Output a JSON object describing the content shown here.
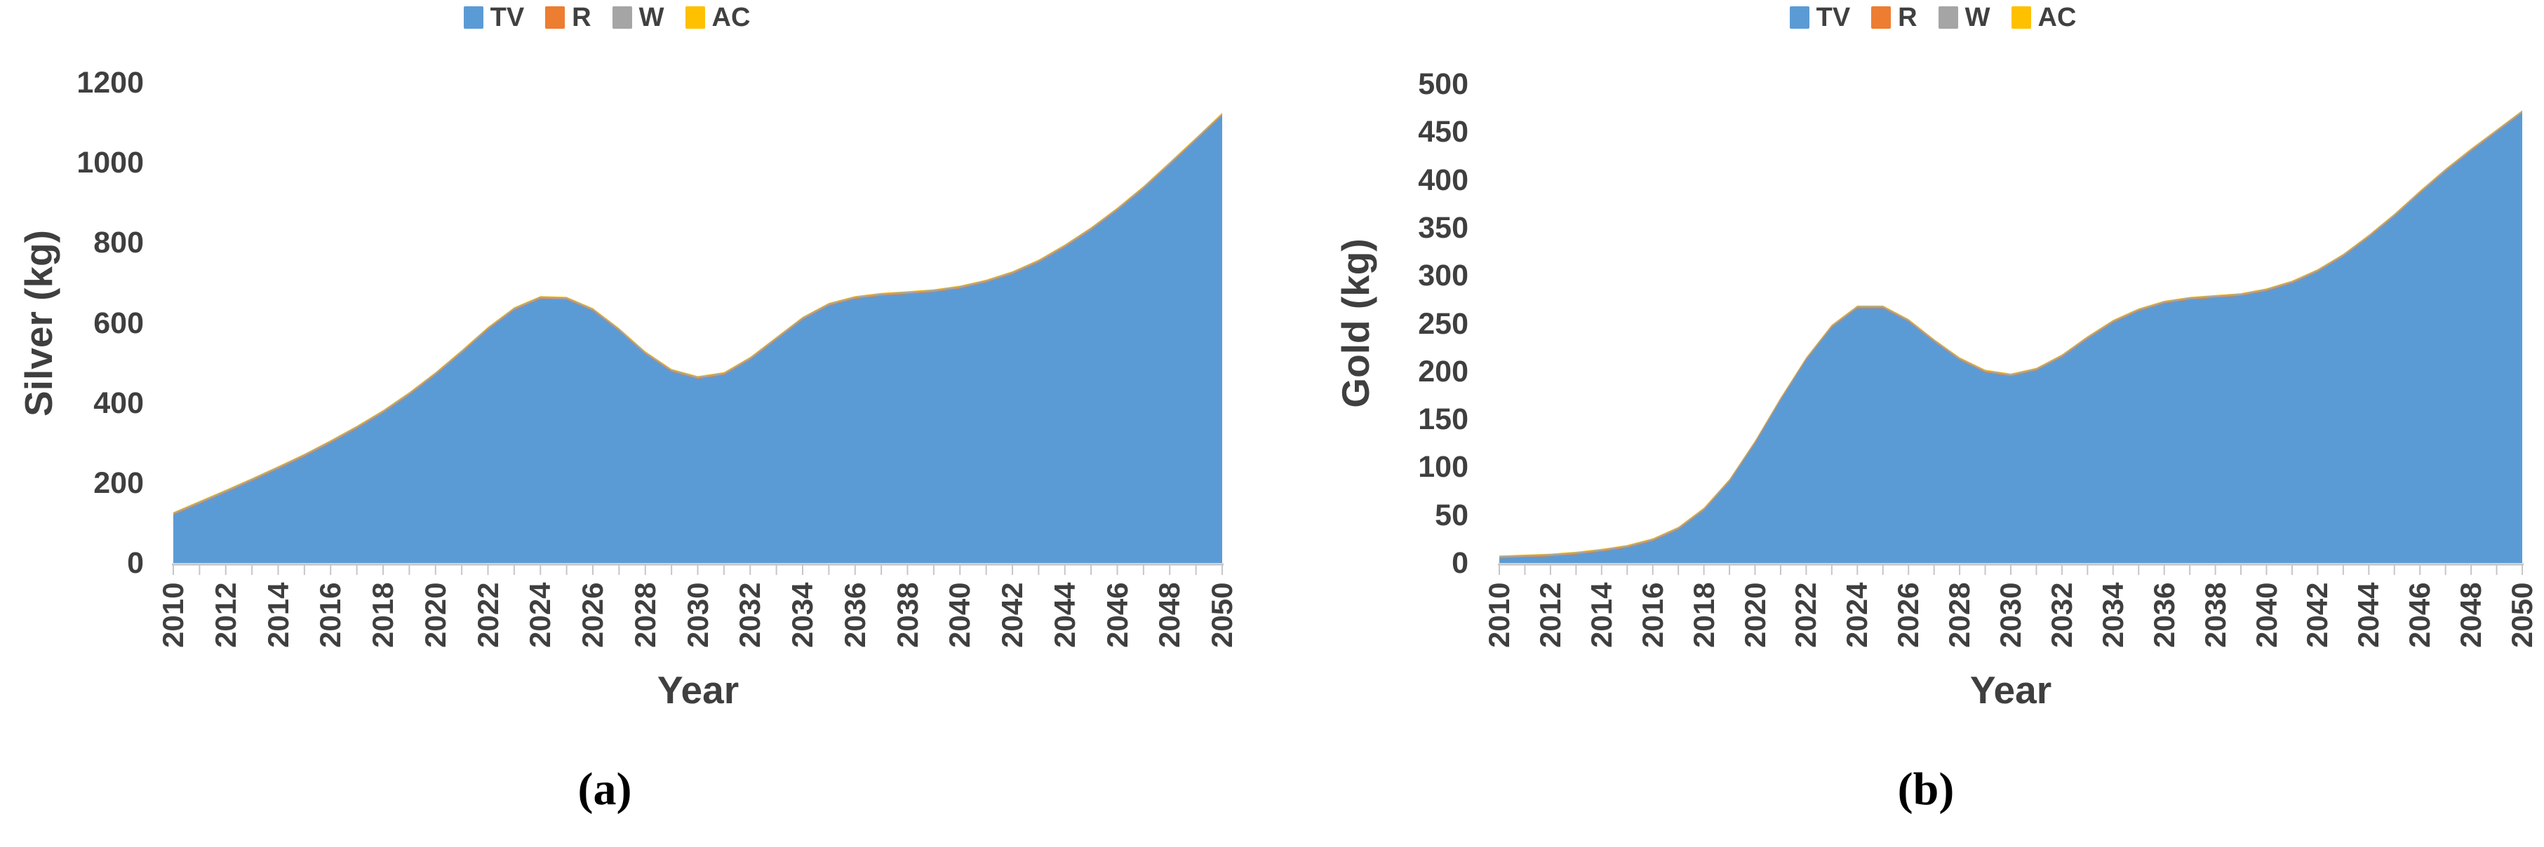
{
  "page": {
    "background": "#FFFFFF"
  },
  "colors": {
    "axis_text": "#3F3F3F",
    "axis_line": "#C6C6C6",
    "caption_text": "#000000"
  },
  "legend": {
    "position": "top",
    "items": [
      {
        "label": "TV",
        "color": "#5B9BD5"
      },
      {
        "label": "R",
        "color": "#ED7D31"
      },
      {
        "label": "W",
        "color": "#A5A5A5"
      },
      {
        "label": "AC",
        "color": "#FFC000"
      }
    ]
  },
  "chart_data": [
    {
      "id": "silver",
      "type": "area",
      "stacked": true,
      "grid": false,
      "xlabel": "Year",
      "ylabel": "Silver (kg)",
      "caption": "(a)",
      "ylim": [
        0,
        1200
      ],
      "yticks": [
        0,
        200,
        400,
        600,
        800,
        1000,
        1200
      ],
      "x": [
        2010,
        2011,
        2012,
        2013,
        2014,
        2015,
        2016,
        2017,
        2018,
        2019,
        2020,
        2021,
        2022,
        2023,
        2024,
        2025,
        2026,
        2027,
        2028,
        2029,
        2030,
        2031,
        2032,
        2033,
        2034,
        2035,
        2036,
        2037,
        2038,
        2039,
        2040,
        2041,
        2042,
        2043,
        2044,
        2045,
        2046,
        2047,
        2048,
        2049,
        2050
      ],
      "xtick_labels": [
        "2010",
        "2012",
        "2014",
        "2016",
        "2018",
        "2020",
        "2022",
        "2024",
        "2026",
        "2028",
        "2030",
        "2032",
        "2034",
        "2036",
        "2038",
        "2040",
        "2042",
        "2044",
        "2046",
        "2048",
        "2050"
      ],
      "series": [
        {
          "name": "TV",
          "color": "#5B9BD5",
          "values": [
            120,
            148,
            176,
            205,
            235,
            266,
            300,
            336,
            375,
            420,
            470,
            525,
            583,
            632,
            660,
            658,
            630,
            580,
            522,
            478,
            460,
            470,
            508,
            558,
            608,
            643,
            660,
            668,
            672,
            677,
            686,
            701,
            722,
            751,
            789,
            832,
            881,
            935,
            995,
            1056,
            1118
          ]
        },
        {
          "name": "R",
          "color": "#ED7D31",
          "values_all_years": 1.5
        },
        {
          "name": "W",
          "color": "#A5A5A5",
          "values_all_years": 4
        },
        {
          "name": "AC",
          "color": "#FFC000",
          "values_all_years": 1.5
        }
      ]
    },
    {
      "id": "gold",
      "type": "area",
      "stacked": true,
      "grid": false,
      "xlabel": "Year",
      "ylabel": "Gold (kg)",
      "caption": "(b)",
      "ylim": [
        0,
        500
      ],
      "yticks": [
        0,
        50,
        100,
        150,
        200,
        250,
        300,
        350,
        400,
        450,
        500
      ],
      "x": [
        2010,
        2011,
        2012,
        2013,
        2014,
        2015,
        2016,
        2017,
        2018,
        2019,
        2020,
        2021,
        2022,
        2023,
        2024,
        2025,
        2026,
        2027,
        2028,
        2029,
        2030,
        2031,
        2032,
        2033,
        2034,
        2035,
        2036,
        2037,
        2038,
        2039,
        2040,
        2041,
        2042,
        2043,
        2044,
        2045,
        2046,
        2047,
        2048,
        2049,
        2050
      ],
      "xtick_labels": [
        "2010",
        "2012",
        "2014",
        "2016",
        "2018",
        "2020",
        "2022",
        "2024",
        "2026",
        "2028",
        "2030",
        "2032",
        "2034",
        "2036",
        "2038",
        "2040",
        "2042",
        "2044",
        "2046",
        "2048",
        "2050"
      ],
      "series": [
        {
          "name": "TV",
          "color": "#5B9BD5",
          "values": [
            5,
            6,
            7,
            9,
            12,
            16,
            23,
            35,
            55,
            85,
            125,
            170,
            212,
            246,
            266,
            266,
            252,
            231,
            212,
            199,
            195,
            201,
            215,
            234,
            251,
            263,
            271,
            275,
            277,
            279,
            284,
            292,
            304,
            320,
            340,
            362,
            386,
            409,
            430,
            450,
            470
          ]
        },
        {
          "name": "R",
          "color": "#ED7D31",
          "values_all_years": 0.6
        },
        {
          "name": "W",
          "color": "#A5A5A5",
          "values_all_years": 1.6
        },
        {
          "name": "AC",
          "color": "#FFC000",
          "values_all_years": 0.6
        }
      ]
    }
  ]
}
